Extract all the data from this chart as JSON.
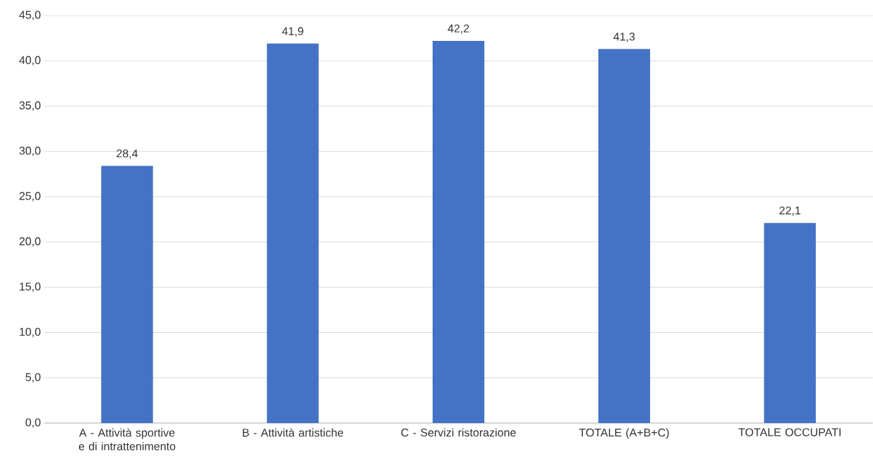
{
  "chart_data": {
    "type": "bar",
    "categories": [
      "A - Attività sportive e di intrattenimento",
      "B - Attività artistiche",
      "C - Servizi ristorazione",
      "TOTALE (A+B+C)",
      "TOTALE OCCUPATI"
    ],
    "values": [
      28.4,
      41.9,
      42.2,
      41.3,
      22.1
    ],
    "value_labels": [
      "28,4",
      "41,9",
      "42,2",
      "41,3",
      "22,1"
    ],
    "color": "#4472c4",
    "ylim": [
      0,
      45
    ],
    "yticks": [
      {
        "value": 0,
        "label": "0,0"
      },
      {
        "value": 5,
        "label": "5,0"
      },
      {
        "value": 10,
        "label": "10,0"
      },
      {
        "value": 15,
        "label": "15,0"
      },
      {
        "value": 20,
        "label": "20,0"
      },
      {
        "value": 25,
        "label": "25,0"
      },
      {
        "value": 30,
        "label": "30,0"
      },
      {
        "value": 35,
        "label": "35,0"
      },
      {
        "value": 40,
        "label": "40,0"
      },
      {
        "value": 45,
        "label": "45,0"
      }
    ],
    "grid": "y"
  }
}
